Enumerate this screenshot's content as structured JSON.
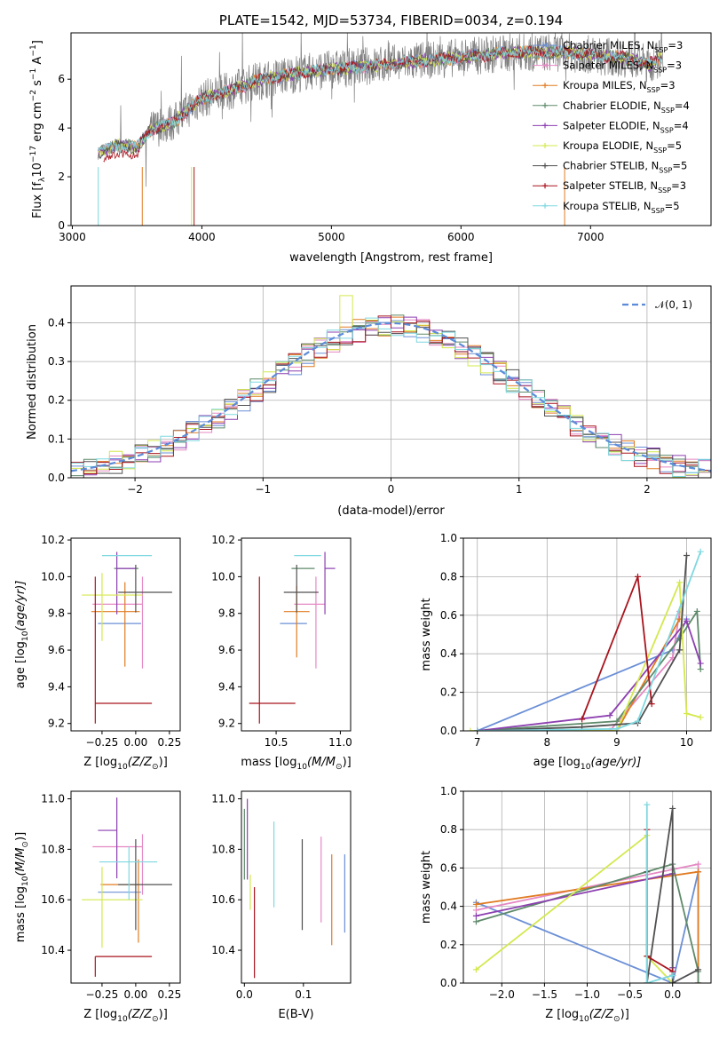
{
  "chart_data": [
    {
      "id": "spectrum",
      "type": "line",
      "title": "PLATE=1542, MJD=53734, FIBERID=0034, z=0.194",
      "xlabel": "wavelength [Angstrom, rest frame]",
      "ylabel": "Flux [f",
      "ylabel_sub": "λ",
      "ylabel_mid": "10",
      "ylabel_sup1": "−17",
      "ylabel_mid2": " erg cm",
      "ylabel_sup2": "−2",
      "ylabel_mid3": " s",
      "ylabel_sup3": "−1",
      "ylabel_mid4": " A",
      "ylabel_sup4": "−1",
      "ylabel_end": "]",
      "xlim": [
        2990,
        7930
      ],
      "ylim": [
        0,
        7.9
      ],
      "xticks": [
        3000,
        4000,
        5000,
        6000,
        7000
      ],
      "yticks": [
        0,
        2,
        4,
        6
      ],
      "grid": false,
      "legend_position": "top-right",
      "series": [
        {
          "name": "Chabrier MILES, N",
          "sub": "SSP",
          "suffix": "=3",
          "color": "#6b8fd6",
          "marker": "x"
        },
        {
          "name": "Salpeter MILES, N",
          "sub": "SSP",
          "suffix": "=3",
          "color": "#e588c4",
          "marker": "x"
        },
        {
          "name": "Kroupa MILES, N",
          "sub": "SSP",
          "suffix": "=3",
          "color": "#e07b22",
          "marker": "+"
        },
        {
          "name": "Chabrier ELODIE, N",
          "sub": "SSP",
          "suffix": "=4",
          "color": "#5e8a6a",
          "marker": "+"
        },
        {
          "name": "Salpeter ELODIE, N",
          "sub": "SSP",
          "suffix": "=4",
          "color": "#8c3fb0",
          "marker": "+"
        },
        {
          "name": "Kroupa ELODIE, N",
          "sub": "SSP",
          "suffix": "=5",
          "color": "#d4e84e",
          "marker": "+"
        },
        {
          "name": "Chabrier STELIB, N",
          "sub": "SSP",
          "suffix": "=5",
          "color": "#505050",
          "marker": "+"
        },
        {
          "name": "Salpeter STELIB, N",
          "sub": "SSP",
          "suffix": "=3",
          "color": "#a8141e",
          "marker": "+"
        },
        {
          "name": "Kroupa STELIB, N",
          "sub": "SSP",
          "suffix": "=5",
          "color": "#7fd8e0",
          "marker": "+"
        }
      ],
      "data_color": "#808080",
      "continuum": [
        [
          3200,
          3.0
        ],
        [
          3350,
          3.3
        ],
        [
          3500,
          3.2
        ],
        [
          3600,
          3.9
        ],
        [
          3700,
          4.1
        ],
        [
          3800,
          4.3
        ],
        [
          3900,
          4.8
        ],
        [
          4000,
          5.2
        ],
        [
          4200,
          5.5
        ],
        [
          4400,
          5.9
        ],
        [
          4600,
          6.1
        ],
        [
          4800,
          6.3
        ],
        [
          5000,
          6.4
        ],
        [
          5200,
          6.5
        ],
        [
          5400,
          6.6
        ],
        [
          5600,
          6.7
        ],
        [
          5800,
          6.8
        ],
        [
          6000,
          6.9
        ],
        [
          6200,
          7.0
        ],
        [
          6400,
          7.1
        ],
        [
          6600,
          7.1
        ],
        [
          6800,
          7.1
        ],
        [
          7000,
          7.0
        ],
        [
          7200,
          6.9
        ],
        [
          7350,
          6.8
        ],
        [
          7450,
          6.6
        ],
        [
          7550,
          6.9
        ]
      ]
    },
    {
      "id": "residuals",
      "type": "bar",
      "xlabel": "(data-model)/error",
      "ylabel": "Normed distribution",
      "xlim": [
        -2.5,
        2.5
      ],
      "ylim": [
        0,
        0.495
      ],
      "xticks": [
        -2,
        -1,
        0,
        1,
        2
      ],
      "yticks": [
        0.0,
        0.1,
        0.2,
        0.3,
        0.4
      ],
      "grid": true,
      "legend_position": "top-right",
      "legend_label": "𝒩(0, 1)",
      "bin_width": 0.1,
      "gaussian_color": "#5b8bd9"
    },
    {
      "id": "age_vs_Z",
      "type": "scatter",
      "xlabel": "Z [log",
      "xlabel_sub": "10",
      "xlabel_rest": "(Z/Z",
      "xlabel_sun": "⊙",
      "xlabel_end": ")]",
      "ylabel": "age  [log",
      "ylabel_sub": "10",
      "ylabel_rest": "(age/yr)]",
      "xlim": [
        -0.48,
        0.33
      ],
      "ylim": [
        9.16,
        10.21
      ],
      "xticks": [
        -0.25,
        0.0,
        0.25
      ],
      "xtick_labels": [
        "−0.25",
        "0.00",
        "0.25"
      ],
      "yticks": [
        9.2,
        9.4,
        9.6,
        9.8,
        10.0,
        10.2
      ],
      "grid": false,
      "points": [
        {
          "x": -0.08,
          "y": 9.745,
          "xerr": [
            0.2,
            0.12
          ],
          "yerr": [
            0.0,
            0.0
          ]
        },
        {
          "x": 0.05,
          "y": 9.85,
          "xerr": [
            0.37,
            0.0
          ],
          "yerr": [
            0.35,
            0.15
          ]
        },
        {
          "x": -0.08,
          "y": 9.81,
          "xerr": [
            0.25,
            0.11
          ],
          "yerr": [
            0.3,
            0.16
          ]
        },
        {
          "x": 0.02,
          "y": 10.045,
          "xerr": [
            0.18,
            0.0
          ],
          "yerr": [
            0.0,
            0.0
          ]
        },
        {
          "x": -0.14,
          "y": 10.045,
          "xerr": [
            0.0,
            0.14
          ],
          "yerr": [
            0.25,
            0.09
          ]
        },
        {
          "x": -0.25,
          "y": 9.9,
          "xerr": [
            0.15,
            0.3
          ],
          "yerr": [
            0.25,
            0.12
          ]
        },
        {
          "x": 0.0,
          "y": 9.915,
          "xerr": [
            0.13,
            0.27
          ],
          "yerr": [
            0.11,
            0.15
          ]
        },
        {
          "x": -0.3,
          "y": 9.31,
          "xerr": [
            0.0,
            0.42
          ],
          "yerr": [
            0.11,
            0.69
          ]
        },
        {
          "x": 0.05,
          "y": 10.115,
          "xerr": [
            0.3,
            0.07
          ],
          "yerr": [
            0.0,
            0.0
          ]
        }
      ]
    },
    {
      "id": "age_vs_mass",
      "type": "scatter",
      "xlabel": "mass [log",
      "xlabel_sub": "10",
      "xlabel_rest": "(M/M",
      "xlabel_sun": "⊙",
      "xlabel_end": ")]",
      "xlim": [
        10.23,
        11.08
      ],
      "ylim": [
        9.16,
        10.21
      ],
      "xticks": [
        10.5,
        11.0
      ],
      "yticks": [
        9.2,
        9.4,
        9.6,
        9.8,
        10.0,
        10.2
      ],
      "grid": false,
      "points": [
        {
          "x": 10.6,
          "y": 9.745,
          "xerr": [
            0.07,
            0.14
          ],
          "yerr": [
            0.0,
            0.0
          ]
        },
        {
          "x": 10.81,
          "y": 9.85,
          "xerr": [
            0.17,
            0.07
          ],
          "yerr": [
            0.35,
            0.15
          ]
        },
        {
          "x": 10.66,
          "y": 9.81,
          "xerr": [
            0.1,
            0.1
          ],
          "yerr": [
            0.25,
            0.14
          ]
        },
        {
          "x": 10.8,
          "y": 10.045,
          "xerr": [
            0.18,
            0.0
          ],
          "yerr": [
            0.0,
            0.0
          ]
        },
        {
          "x": 10.88,
          "y": 10.045,
          "xerr": [
            0.0,
            0.08
          ],
          "yerr": [
            0.25,
            0.09
          ]
        },
        {
          "x": 10.6,
          "y": 9.9,
          "xerr": [
            0.0,
            0.0
          ],
          "yerr": [
            0.0,
            0.0
          ]
        },
        {
          "x": 10.66,
          "y": 9.915,
          "xerr": [
            0.1,
            0.17
          ],
          "yerr": [
            0.11,
            0.15
          ]
        },
        {
          "x": 10.37,
          "y": 9.31,
          "xerr": [
            0.08,
            0.28
          ],
          "yerr": [
            0.11,
            0.69
          ]
        },
        {
          "x": 10.75,
          "y": 10.115,
          "xerr": [
            0.11,
            0.1
          ],
          "yerr": [
            0.0,
            0.0
          ]
        }
      ]
    },
    {
      "id": "weight_vs_age",
      "type": "line",
      "xlabel": "age  [log",
      "xlabel_sub": "10",
      "xlabel_rest": "(age/yr)]",
      "ylabel": "mass weight",
      "xlim": [
        6.8,
        10.35
      ],
      "ylim": [
        0,
        1.0
      ],
      "xticks": [
        7,
        8,
        9,
        10
      ],
      "yticks": [
        0.0,
        0.2,
        0.4,
        0.6,
        0.8,
        1.0
      ],
      "grid": true,
      "series": [
        {
          "x": [
            7.0,
            9.8,
            10.0
          ],
          "y": [
            0.0,
            0.42,
            0.58
          ]
        },
        {
          "x": [
            8.9,
            9.8,
            9.9
          ],
          "y": [
            0.0,
            0.38,
            0.62
          ]
        },
        {
          "x": [
            8.0,
            9.0,
            9.9
          ],
          "y": [
            0.0,
            0.0,
            0.58
          ]
        },
        {
          "x": [
            7.0,
            9.0,
            9.9,
            10.15,
            10.2
          ],
          "y": [
            0.0,
            0.05,
            0.48,
            0.62,
            0.32
          ]
        },
        {
          "x": [
            7.0,
            8.9,
            10.0,
            10.2
          ],
          "y": [
            0.0,
            0.08,
            0.57,
            0.35
          ]
        },
        {
          "x": [
            6.9,
            9.0,
            9.9,
            10.0,
            10.2
          ],
          "y": [
            0.0,
            0.0,
            0.77,
            0.09,
            0.07
          ]
        },
        {
          "x": [
            7.0,
            8.5,
            9.3,
            9.9,
            10.0
          ],
          "y": [
            0.0,
            0.02,
            0.04,
            0.42,
            0.91
          ]
        },
        {
          "x": [
            8.5,
            9.3,
            9.5
          ],
          "y": [
            0.06,
            0.8,
            0.14
          ]
        },
        {
          "x": [
            7.0,
            9.0,
            9.3,
            10.2
          ],
          "y": [
            0.0,
            0.01,
            0.05,
            0.93
          ]
        }
      ]
    },
    {
      "id": "mass_vs_Z",
      "type": "scatter",
      "xlabel": "Z [log",
      "xlabel_sub": "10",
      "xlabel_rest": "(Z/Z",
      "xlabel_sun": "⊙",
      "xlabel_end": ")]",
      "ylabel": "mass [log",
      "ylabel_sub": "10",
      "ylabel_rest": "(M/M",
      "ylabel_sun": "⊙",
      "ylabel_end": ")]",
      "xlim": [
        -0.48,
        0.33
      ],
      "ylim": [
        10.27,
        11.03
      ],
      "xticks": [
        -0.25,
        0.0,
        0.25
      ],
      "xtick_labels": [
        "−0.25",
        "0.00",
        "0.25"
      ],
      "yticks": [
        10.4,
        10.6,
        10.8,
        11.0
      ],
      "grid": false,
      "points": [
        {
          "x": -0.08,
          "y": 10.63,
          "xerr": [
            0.2,
            0.12
          ],
          "yerr": [
            0.0,
            0.0
          ]
        },
        {
          "x": 0.05,
          "y": 10.81,
          "xerr": [
            0.37,
            0.0
          ],
          "yerr": [
            0.19,
            0.05
          ]
        },
        {
          "x": 0.02,
          "y": 10.66,
          "xerr": [
            0.28,
            0.0
          ],
          "yerr": [
            0.23,
            0.1
          ]
        },
        {
          "x": -0.05,
          "y": 10.66,
          "xerr": [
            0.0,
            0.0
          ],
          "yerr": [
            0.0,
            0.0
          ]
        },
        {
          "x": -0.14,
          "y": 10.875,
          "xerr": [
            0.14,
            0.0
          ],
          "yerr": [
            0.19,
            0.13
          ]
        },
        {
          "x": -0.25,
          "y": 10.6,
          "xerr": [
            0.15,
            0.3
          ],
          "yerr": [
            0.19,
            0.13
          ]
        },
        {
          "x": 0.0,
          "y": 10.66,
          "xerr": [
            0.13,
            0.27
          ],
          "yerr": [
            0.18,
            0.18
          ]
        },
        {
          "x": -0.3,
          "y": 10.375,
          "xerr": [
            0.0,
            0.42
          ],
          "yerr": [
            0.08,
            0.0
          ]
        },
        {
          "x": -0.05,
          "y": 10.75,
          "xerr": [
            0.22,
            0.21
          ],
          "yerr": [
            0.15,
            0.06
          ]
        }
      ]
    },
    {
      "id": "mass_vs_EBV",
      "type": "scatter",
      "xlabel": "E(B-V)",
      "xlim": [
        -0.005,
        0.18
      ],
      "ylim": [
        10.27,
        11.03
      ],
      "xticks": [
        0.0,
        0.1
      ],
      "xtick_labels": [
        "0.0",
        "0.1"
      ],
      "yticks": [
        10.4,
        10.6,
        10.8,
        11.0
      ],
      "grid": false,
      "points": [
        {
          "x": 0.17,
          "y": 10.63,
          "xerr": [
            0.0,
            0.0
          ],
          "yerr": [
            0.16,
            0.15
          ]
        },
        {
          "x": 0.13,
          "y": 10.68,
          "xerr": [
            0.0,
            0.0
          ],
          "yerr": [
            0.17,
            0.17
          ]
        },
        {
          "x": 0.148,
          "y": 10.6,
          "xerr": [
            0.0,
            0.0
          ],
          "yerr": [
            0.18,
            0.18
          ]
        },
        {
          "x": 0.0,
          "y": 10.82,
          "xerr": [
            0.0,
            0.0
          ],
          "yerr": [
            0.14,
            0.14
          ]
        },
        {
          "x": 0.005,
          "y": 10.84,
          "xerr": [
            0.0,
            0.0
          ],
          "yerr": [
            0.16,
            0.16
          ]
        },
        {
          "x": 0.01,
          "y": 10.63,
          "xerr": [
            0.0,
            0.0
          ],
          "yerr": [
            0.07,
            0.07
          ]
        },
        {
          "x": 0.098,
          "y": 10.66,
          "xerr": [
            0.0,
            0.0
          ],
          "yerr": [
            0.18,
            0.18
          ]
        },
        {
          "x": 0.017,
          "y": 10.47,
          "xerr": [
            0.0,
            0.0
          ],
          "yerr": [
            0.18,
            0.18
          ]
        },
        {
          "x": 0.05,
          "y": 10.74,
          "xerr": [
            0.0,
            0.0
          ],
          "yerr": [
            0.17,
            0.17
          ]
        }
      ]
    },
    {
      "id": "weight_vs_Z",
      "type": "line",
      "xlabel": "Z [log",
      "xlabel_sub": "10",
      "xlabel_rest": "(Z/Z",
      "xlabel_sun": "⊙",
      "xlabel_end": ")]",
      "ylabel": "mass weight",
      "xlim": [
        -2.45,
        0.45
      ],
      "ylim": [
        0,
        1.0
      ],
      "xticks": [
        -2.0,
        -1.5,
        -1.0,
        -0.5,
        0.0
      ],
      "xtick_labels": [
        "−2.0",
        "−1.5",
        "−1.0",
        "−0.5",
        "0.0"
      ],
      "yticks": [
        0.0,
        0.2,
        0.4,
        0.6,
        0.8,
        1.0
      ],
      "grid": true,
      "series": [
        {
          "x": [
            -2.3,
            0.0,
            0.3
          ],
          "y": [
            0.42,
            0.0,
            0.58
          ]
        },
        {
          "x": [
            -2.3,
            0.3,
            0.3
          ],
          "y": [
            0.38,
            0.62,
            0.0
          ]
        },
        {
          "x": [
            -2.3,
            0.3,
            0.3
          ],
          "y": [
            0.41,
            0.58,
            0.0
          ]
        },
        {
          "x": [
            -2.3,
            0.0,
            0.3,
            0.3
          ],
          "y": [
            0.32,
            0.62,
            0.06,
            0.0
          ]
        },
        {
          "x": [
            -2.3,
            0.0,
            0.0
          ],
          "y": [
            0.35,
            0.57,
            0.08
          ]
        },
        {
          "x": [
            -2.3,
            -0.3,
            -0.3,
            0.0
          ],
          "y": [
            0.07,
            0.77,
            0.14,
            0.0
          ]
        },
        {
          "x": [
            -0.3,
            -0.3,
            0.0,
            0.0,
            0.3
          ],
          "y": [
            0.58,
            0.0,
            0.91,
            0.0,
            0.07
          ]
        },
        {
          "x": [
            -0.3,
            -0.3,
            0.0,
            0.0
          ],
          "y": [
            0.8,
            0.14,
            0.06,
            0.04
          ]
        },
        {
          "x": [
            -0.3,
            -0.3,
            0.0
          ],
          "y": [
            0.93,
            0.0,
            0.04
          ]
        }
      ]
    }
  ]
}
